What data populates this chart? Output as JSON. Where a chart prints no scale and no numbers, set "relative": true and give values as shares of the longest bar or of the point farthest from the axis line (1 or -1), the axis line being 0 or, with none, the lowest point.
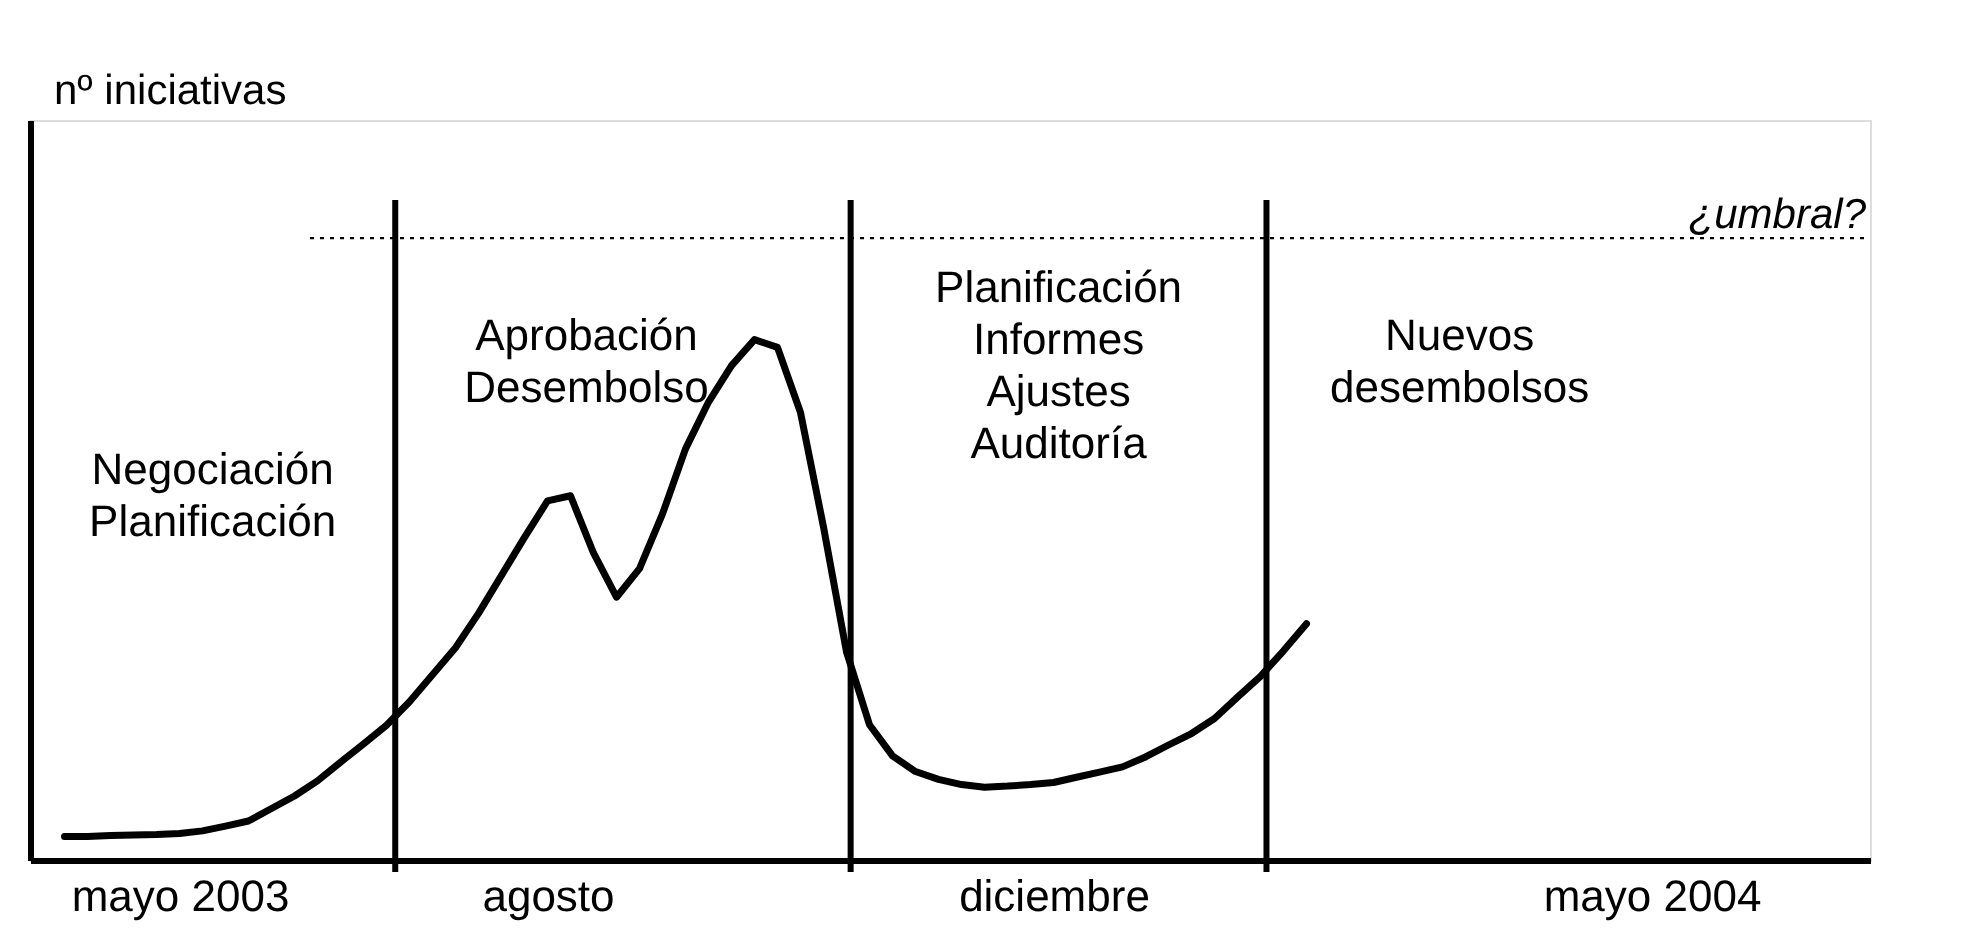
{
  "chart_data": {
    "type": "line",
    "relative": true,
    "categories": [
      null,
      null,
      null,
      null,
      null,
      null,
      "mayo 2003",
      null,
      null,
      null,
      null,
      null,
      null,
      null,
      null,
      null,
      null,
      null,
      null,
      null,
      null,
      null,
      "agosto",
      null,
      null,
      null,
      null,
      null,
      null,
      null,
      null,
      null,
      null,
      null,
      null,
      null,
      null,
      null,
      null,
      null,
      null,
      null,
      null,
      null,
      "diciembre",
      null,
      null,
      null,
      null,
      null,
      null,
      null,
      null,
      null,
      null,
      null,
      null,
      null,
      null,
      null,
      null,
      null,
      null,
      null,
      null,
      null,
      null,
      null,
      null,
      null,
      "mayo 2004",
      null,
      null,
      null,
      null,
      null,
      null,
      null,
      null,
      null
    ],
    "series": [
      {
        "color": "#000000",
        "values": [
          null,
          0.045,
          0.045,
          0.047,
          0.048,
          0.049,
          0.051,
          0.056,
          0.065,
          0.075,
          0.099,
          0.123,
          0.152,
          0.188,
          0.223,
          0.259,
          0.304,
          0.356,
          0.408,
          0.474,
          0.547,
          0.62,
          0.69,
          0.7,
          0.59,
          0.505,
          0.56,
          0.665,
          0.79,
          0.88,
          0.95,
          1,
          0.985,
          0.86,
          0.64,
          0.4,
          0.26,
          0.2,
          0.17,
          0.155,
          0.145,
          0.14,
          0.142,
          0.145,
          0.149,
          0.159,
          0.169,
          0.179,
          0.198,
          0.221,
          0.243,
          0.272,
          0.313,
          0.353,
          0.402,
          0.454,
          null,
          null,
          null,
          null,
          null,
          null,
          null,
          null,
          null,
          null,
          null,
          null,
          null,
          null,
          null,
          null,
          null,
          null,
          null,
          null,
          null,
          null,
          null,
          null
        ]
      }
    ],
    "ref_lines": [
      {
        "axis": "y",
        "value": 1.195,
        "label": "¿umbral?",
        "color": "#000000",
        "line_style": "dotted"
      }
    ],
    "annotations": [
      "Negociación\nPlanificación",
      "Aprobación\nDesembolso",
      "Planificación\nInformes\nAjustes\nAuditoría",
      "Nuevos\ndesembolsos",
      "nº iniciativas"
    ],
    "grid": false,
    "legend": false,
    "marker": "none",
    "line_style": "solid"
  }
}
